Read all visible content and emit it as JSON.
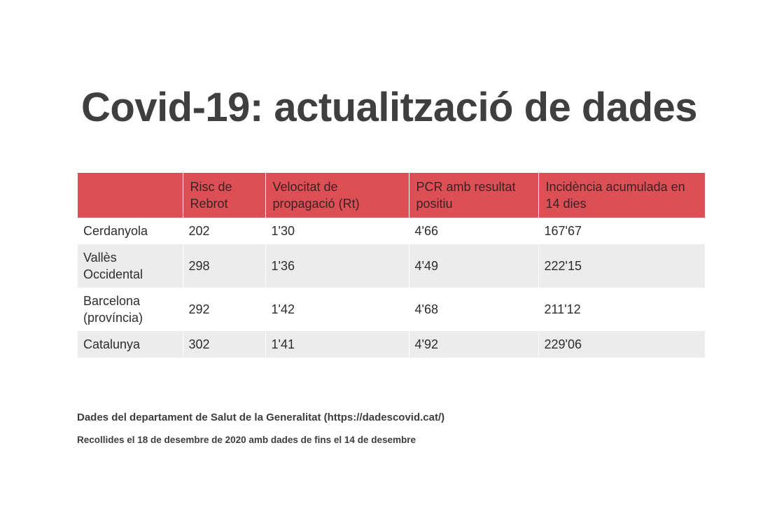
{
  "title": "Covid-19: actualització de dades",
  "table": {
    "headers": [
      "",
      "Risc de Rebrot",
      "Velocitat de propagació (Rt)",
      "PCR amb resultat positiu",
      "Incidència acumulada en 14 dies"
    ],
    "rows": [
      [
        "Cerdanyola",
        "202",
        "1'30",
        "4'66",
        "167'67"
      ],
      [
        "Vallès Occidental",
        "298",
        "1'36",
        "4'49",
        "222'15"
      ],
      [
        "Barcelona (província)",
        "292",
        "1'42",
        "4'68",
        "211'12"
      ],
      [
        "Catalunya",
        "302",
        "1'41",
        "4'92",
        "229'06"
      ]
    ]
  },
  "footer": {
    "source": "Dades del departament de Salut de la Generalitat (https://dadescovid.cat/)",
    "collected": "Recollides el 18 de desembre de 2020 amb dades de fins el 14 de desembre"
  },
  "colors": {
    "header_bg": "#dc5055",
    "stripe_bg": "#ececec",
    "title_text": "#3f3f3f"
  }
}
